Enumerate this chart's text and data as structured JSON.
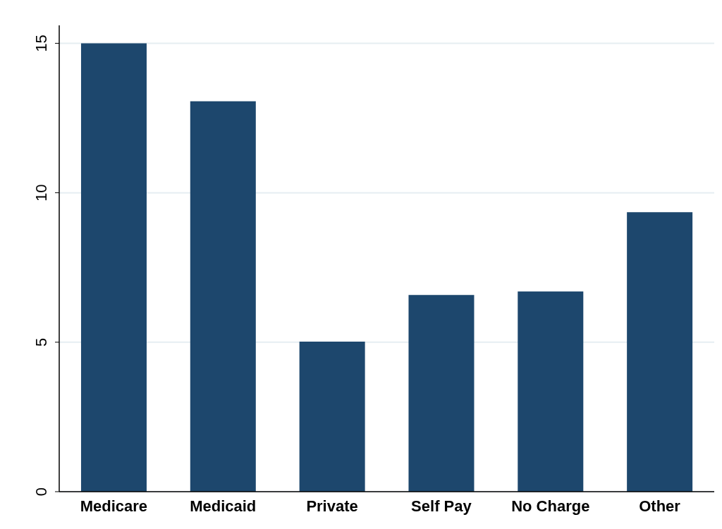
{
  "chart_data": {
    "type": "bar",
    "categories": [
      "Medicare",
      "Medicaid",
      "Private",
      "Self Pay",
      "No Charge",
      "Other"
    ],
    "values": [
      15.0,
      13.06,
      5.02,
      6.58,
      6.7,
      9.35
    ],
    "color": "#1d476d",
    "ylim": [
      0,
      15.6
    ],
    "yticks": [
      0,
      5,
      10,
      15
    ],
    "grid": "y"
  }
}
